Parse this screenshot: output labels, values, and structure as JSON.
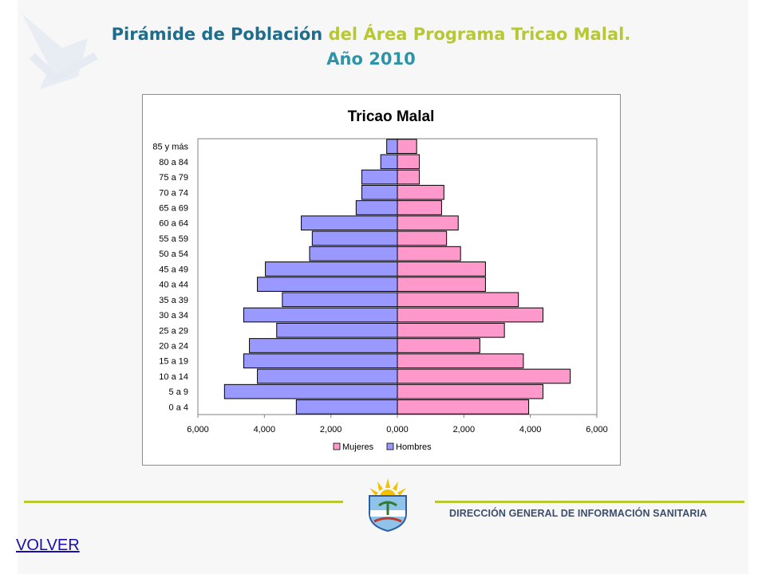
{
  "header": {
    "title_part1": "Pirámide de Población",
    "title_part2": "del Área Programa Tricao Malal.",
    "title_line2": "Año 2010"
  },
  "chart_data": {
    "type": "bar",
    "orientation": "horizontal",
    "title": "Tricao Malal",
    "categories": [
      "0 a 4",
      "5 a 9",
      "10 a 14",
      "15 a 19",
      "20 a 24",
      "25 a 29",
      "30 a 34",
      "35 a 39",
      "40 a 44",
      "45 a 49",
      "50 a 54",
      "55 a 59",
      "60 a 64",
      "65 a 69",
      "70 a 74",
      "75 a 79",
      "80 a 84",
      "85 y más"
    ],
    "series": [
      {
        "name": "Mujeres",
        "color": "#ff99cc",
        "values": [
          3950,
          4380,
          5200,
          3790,
          2480,
          3220,
          4380,
          3640,
          2650,
          2650,
          1900,
          1480,
          1830,
          1330,
          1400,
          660,
          660,
          580
        ]
      },
      {
        "name": "Hombres",
        "color": "#9999ff",
        "values": [
          3040,
          5200,
          4210,
          4620,
          4450,
          3630,
          4620,
          3460,
          4210,
          3970,
          2640,
          2560,
          2890,
          1240,
          1070,
          1070,
          500,
          320
        ]
      }
    ],
    "xlim": [
      -6000,
      6000
    ],
    "xticks": [
      -6000,
      -4000,
      -2000,
      0,
      2000,
      4000,
      6000
    ],
    "xtick_labels": [
      "6,000",
      "4,000",
      "2,000",
      "0,000",
      "2,000",
      "4,000",
      "6,000"
    ],
    "legend": {
      "position": "bottom",
      "entries": [
        "Mujeres",
        "Hombres"
      ]
    },
    "grid": false
  },
  "footer": {
    "org_name": "DIRECCIÓN GENERAL DE INFORMACIÓN SANITARIA"
  },
  "nav": {
    "back_label": "VOLVER"
  }
}
